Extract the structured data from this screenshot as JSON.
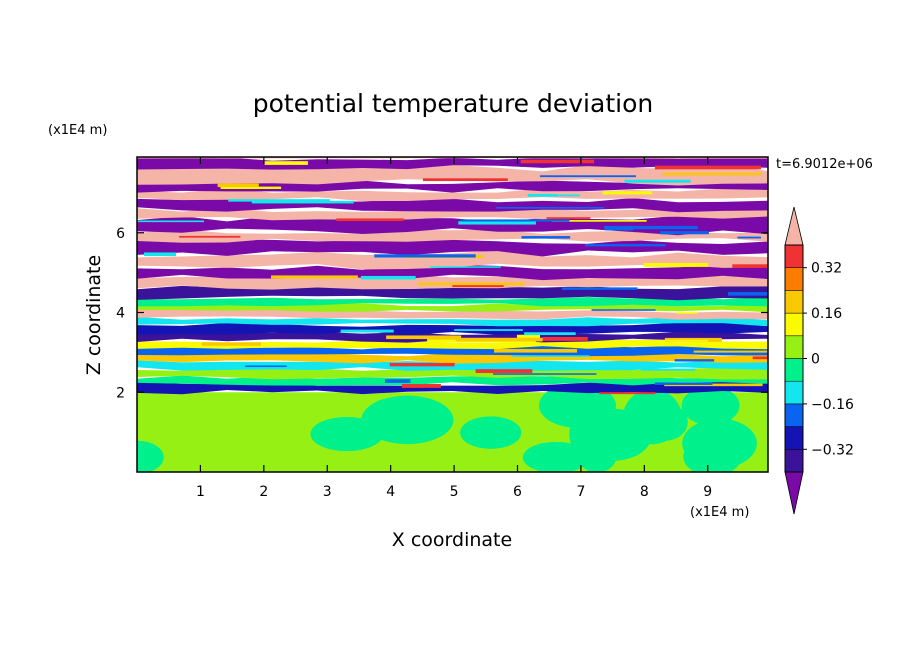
{
  "chart_data": {
    "type": "heatmap",
    "title": "potential temperature deviation",
    "xlabel": "X coordinate",
    "ylabel": "Z coordinate",
    "x_unit": "(x1E4 m)",
    "y_unit": "(x1E4 m)",
    "time_label": "t=6.9012e+06",
    "xlim": [
      0,
      9.95
    ],
    "ylim": [
      0,
      7.9
    ],
    "x_ticks": [
      "1",
      "2",
      "3",
      "4",
      "5",
      "6",
      "7",
      "8",
      "9"
    ],
    "y_ticks": [
      "2",
      "4",
      "6"
    ],
    "colorbar": {
      "levels": [
        -0.4,
        -0.32,
        -0.24,
        -0.16,
        -0.08,
        0,
        0.08,
        0.16,
        0.24,
        0.32,
        0.4
      ],
      "tick_labels": [
        "0.32",
        "0.16",
        "0",
        "−0.16",
        "−0.32"
      ],
      "tick_values": [
        0.32,
        0.16,
        0,
        -0.16,
        -0.32
      ],
      "colors": {
        "below": "#7a0aa8",
        "band_-0.40_-0.32": "#3b139b",
        "band_-0.32_-0.24": "#1414b4",
        "band_-0.24_-0.16": "#0a64f0",
        "band_-0.16_-0.08": "#14e6f0",
        "band_-0.08_0": "#00f08c",
        "band_0_0.08": "#96f014",
        "band_0.08_0.16": "#fafa00",
        "band_0.16_0.24": "#fac800",
        "band_0.24_0.32": "#fa7d00",
        "band_0.32_0.40": "#f03232",
        "above": "#f5b4a8"
      }
    },
    "structure": {
      "lower_layer_z": [
        0,
        2.0
      ],
      "lower_layer_values": "mostly 0 to 0.08 with patches of -0.08 to 0",
      "upper_layer_z": [
        2.0,
        7.9
      ],
      "upper_layer_values": "horizontally elongated alternating bands, extremes below -0.4 and above 0.4"
    }
  }
}
